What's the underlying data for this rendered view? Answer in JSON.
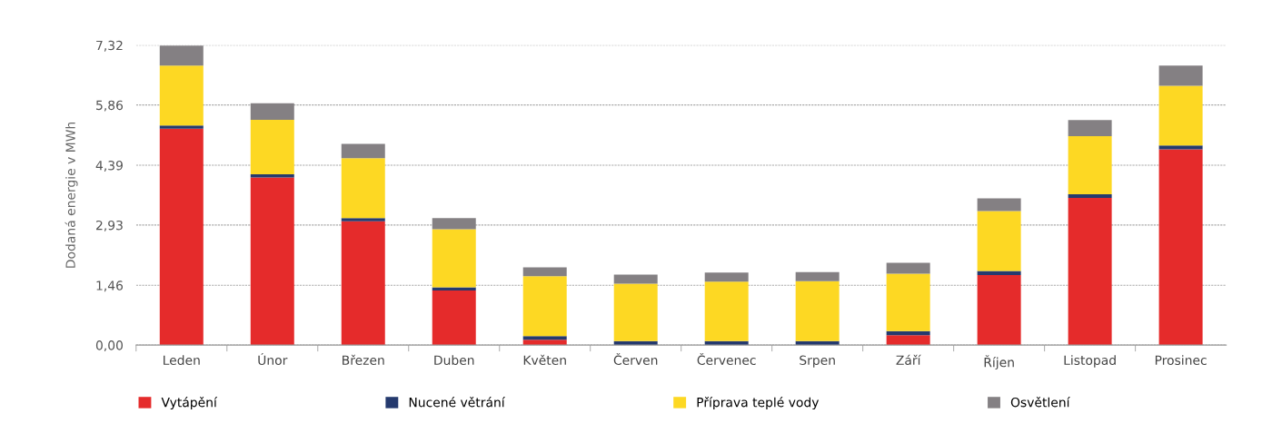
{
  "chart_data": {
    "type": "bar",
    "stacked": true,
    "ylabel": "Dodaná energie v MWh",
    "categories": [
      "Leden",
      "Únor",
      "Březen",
      "Duben",
      "Květen",
      "Červen",
      "Červenec",
      "Srpen",
      "Září",
      "Říjen",
      "Listopad",
      "Prosinec"
    ],
    "series": [
      {
        "name": "Vytápění",
        "color": "#e52b2b",
        "values": [
          5.28,
          4.09,
          3.02,
          1.33,
          0.13,
          0,
          0,
          0,
          0.24,
          1.71,
          3.59,
          4.78
        ]
      },
      {
        "name": "Nucené větrání",
        "color": "#253a6e",
        "values": [
          0.08,
          0.08,
          0.08,
          0.08,
          0.09,
          0.1,
          0.1,
          0.1,
          0.1,
          0.1,
          0.09,
          0.09
        ]
      },
      {
        "name": "Příprava teplé vody",
        "color": "#fdd823",
        "values": [
          1.46,
          1.33,
          1.46,
          1.42,
          1.46,
          1.4,
          1.45,
          1.46,
          1.4,
          1.46,
          1.42,
          1.46
        ]
      },
      {
        "name": "Osvětlení",
        "color": "#848083",
        "values": [
          0.49,
          0.4,
          0.35,
          0.27,
          0.22,
          0.22,
          0.22,
          0.22,
          0.27,
          0.31,
          0.39,
          0.49
        ]
      }
    ],
    "ylim": [
      0,
      7.32
    ],
    "yticks": [
      {
        "value": 0,
        "label": "0,00"
      },
      {
        "value": 1.46,
        "label": "1,46"
      },
      {
        "value": 2.93,
        "label": "2,93"
      },
      {
        "value": 4.39,
        "label": "4,39"
      },
      {
        "value": 5.86,
        "label": "5,86"
      },
      {
        "value": 7.32,
        "label": "7,32"
      }
    ],
    "grid": "y",
    "legend": "bottom"
  }
}
